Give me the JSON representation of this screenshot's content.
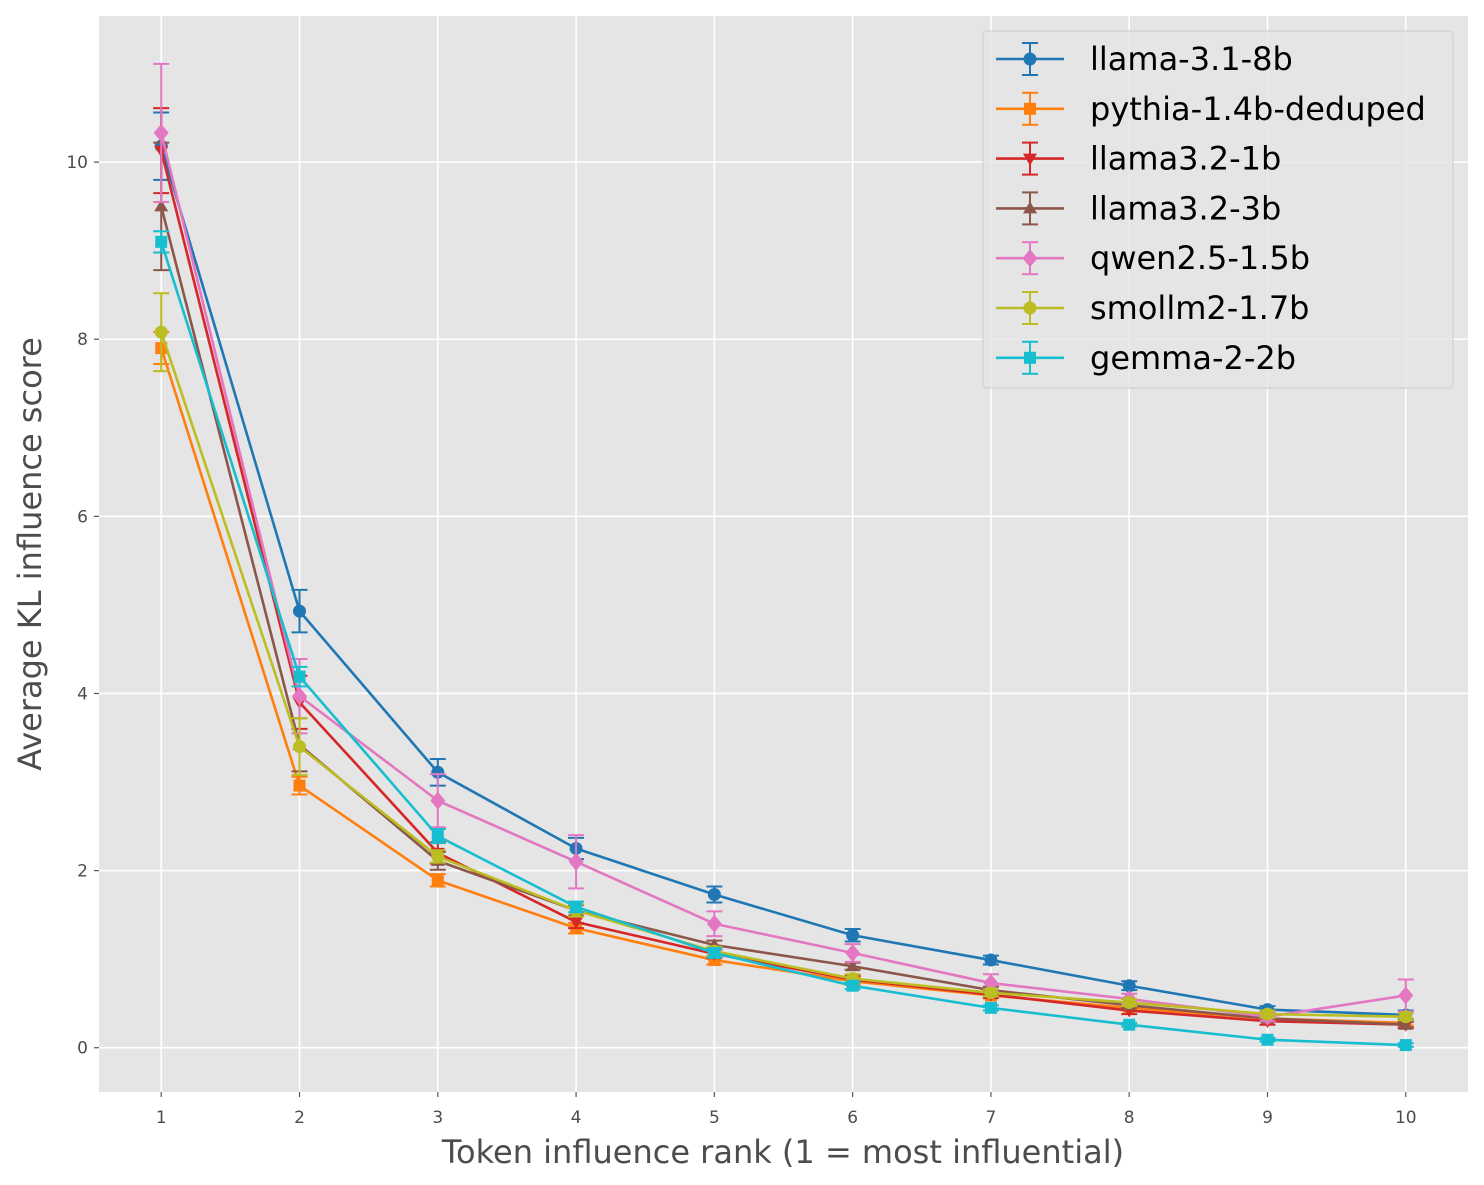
{
  "chart_data": {
    "type": "line",
    "title": "",
    "xlabel": "Token influence rank (1 = most influential)",
    "ylabel": "Average KL influence score",
    "x": [
      1,
      2,
      3,
      4,
      5,
      6,
      7,
      8,
      9,
      10
    ],
    "xticks": [
      "1",
      "2",
      "3",
      "4",
      "5",
      "6",
      "7",
      "8",
      "9",
      "10"
    ],
    "xlim": [
      0.55,
      10.45
    ],
    "yticks": [
      "0",
      "2",
      "4",
      "6",
      "8",
      "10"
    ],
    "ylim": [
      -0.5,
      11.65
    ],
    "grid": true,
    "legend_position": "top-right",
    "series": [
      {
        "name": "llama-3.1-8b",
        "color": "#1f77b4",
        "marker": "circle",
        "values": [
          10.18,
          4.93,
          3.11,
          2.25,
          1.73,
          1.27,
          0.99,
          0.7,
          0.43,
          0.37
        ],
        "errors": [
          0.38,
          0.24,
          0.15,
          0.12,
          0.09,
          0.07,
          0.05,
          0.05,
          0.04,
          0.05
        ]
      },
      {
        "name": "pythia-1.4b-deduped",
        "color": "#ff7f0e",
        "marker": "square",
        "values": [
          7.9,
          2.96,
          1.89,
          1.35,
          0.99,
          0.75,
          0.59,
          0.45,
          0.33,
          0.28
        ],
        "errors": [
          0.18,
          0.1,
          0.07,
          0.06,
          0.05,
          0.04,
          0.03,
          0.03,
          0.03,
          0.03
        ]
      },
      {
        "name": "llama3.2-1b",
        "color": "#d62728",
        "marker": "triangle-down",
        "values": [
          10.13,
          3.9,
          2.2,
          1.42,
          1.06,
          0.77,
          0.6,
          0.42,
          0.3,
          0.26
        ],
        "errors": [
          0.48,
          0.3,
          0.12,
          0.07,
          0.05,
          0.04,
          0.04,
          0.04,
          0.04,
          0.04
        ]
      },
      {
        "name": "llama3.2-3b",
        "color": "#8c564b",
        "marker": "triangle-up",
        "values": [
          9.5,
          3.42,
          2.11,
          1.55,
          1.16,
          0.92,
          0.65,
          0.48,
          0.33,
          0.26
        ],
        "errors": [
          0.72,
          0.3,
          0.1,
          0.06,
          0.05,
          0.04,
          0.04,
          0.03,
          0.03,
          0.03
        ]
      },
      {
        "name": "qwen2.5-1.5b",
        "color": "#e377c2",
        "marker": "diamond",
        "values": [
          10.33,
          3.97,
          2.79,
          2.1,
          1.4,
          1.07,
          0.73,
          0.55,
          0.35,
          0.59
        ],
        "errors": [
          0.78,
          0.42,
          0.3,
          0.3,
          0.14,
          0.1,
          0.1,
          0.06,
          0.05,
          0.18
        ]
      },
      {
        "name": "smollm2-1.7b",
        "color": "#bcbd22",
        "marker": "circle",
        "values": [
          8.08,
          3.4,
          2.16,
          1.55,
          1.09,
          0.78,
          0.62,
          0.51,
          0.38,
          0.35
        ],
        "errors": [
          0.44,
          0.32,
          0.07,
          0.07,
          0.05,
          0.05,
          0.04,
          0.04,
          0.04,
          0.04
        ]
      },
      {
        "name": "gemma-2-2b",
        "color": "#17becf",
        "marker": "square",
        "values": [
          9.1,
          4.19,
          2.39,
          1.59,
          1.07,
          0.7,
          0.45,
          0.26,
          0.09,
          0.03
        ],
        "errors": [
          0.12,
          0.11,
          0.08,
          0.06,
          0.05,
          0.04,
          0.03,
          0.02,
          0.02,
          0.02
        ]
      }
    ]
  }
}
